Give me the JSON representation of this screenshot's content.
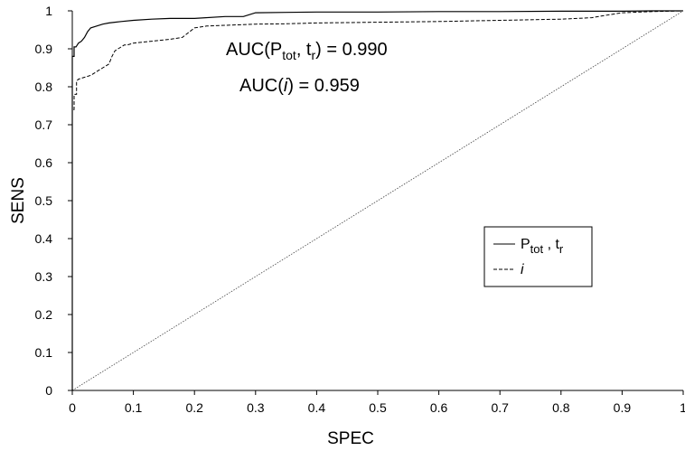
{
  "chart_data": {
    "type": "line",
    "xlabel": "SPEC",
    "ylabel": "SENS",
    "xlim": [
      0,
      1
    ],
    "ylim": [
      0,
      1
    ],
    "x_ticks": [
      "0",
      "0.1",
      "0.2",
      "0.3",
      "0.4",
      "0.5",
      "0.6",
      "0.7",
      "0.8",
      "0.9",
      "1"
    ],
    "y_ticks": [
      "0",
      "0.1",
      "0.2",
      "0.3",
      "0.4",
      "0.5",
      "0.6",
      "0.7",
      "0.8",
      "0.9",
      "1"
    ],
    "grid": false,
    "legend_position": "right",
    "annotations": [
      {
        "parts": [
          [
            "AUC(P",
            ""
          ],
          [
            "tot",
            "sub"
          ],
          [
            ", t",
            ""
          ],
          [
            "r",
            "sub"
          ],
          [
            ") = 0.990",
            ""
          ]
        ]
      },
      {
        "parts": [
          [
            "AUC(",
            ""
          ],
          [
            "i",
            "italic"
          ],
          [
            ") = 0.959",
            ""
          ]
        ]
      }
    ],
    "series": [
      {
        "name": "P tot , t r",
        "legend_parts": [
          [
            "P",
            ""
          ],
          [
            "tot",
            "sub"
          ],
          [
            " , t",
            ""
          ],
          [
            "r",
            "sub"
          ]
        ],
        "style": "solid",
        "x": [
          0,
          0,
          0.003,
          0.003,
          0.006,
          0.01,
          0.015,
          0.02,
          0.025,
          0.03,
          0.04,
          0.05,
          0.06,
          0.08,
          0.1,
          0.13,
          0.16,
          0.2,
          0.25,
          0.28,
          0.3,
          0.35,
          0.4,
          0.5,
          0.6,
          0.7,
          0.8,
          0.9,
          0.95,
          1
        ],
        "y": [
          0,
          0.88,
          0.88,
          0.905,
          0.905,
          0.915,
          0.92,
          0.93,
          0.945,
          0.955,
          0.96,
          0.965,
          0.968,
          0.972,
          0.975,
          0.978,
          0.98,
          0.98,
          0.985,
          0.985,
          0.995,
          0.996,
          0.997,
          0.997,
          0.998,
          0.998,
          0.999,
          0.999,
          1,
          1
        ]
      },
      {
        "name": "i",
        "legend_parts": [
          [
            "i",
            "italic"
          ]
        ],
        "style": "dashed",
        "x": [
          0,
          0,
          0.003,
          0.003,
          0.007,
          0.007,
          0.01,
          0.02,
          0.03,
          0.04,
          0.05,
          0.06,
          0.065,
          0.07,
          0.075,
          0.08,
          0.085,
          0.09,
          0.1,
          0.13,
          0.16,
          0.18,
          0.2,
          0.22,
          0.3,
          0.35,
          0.4,
          0.5,
          0.6,
          0.7,
          0.8,
          0.85,
          0.88,
          0.9,
          0.95,
          1
        ],
        "y": [
          0,
          0.74,
          0.74,
          0.78,
          0.78,
          0.815,
          0.82,
          0.825,
          0.83,
          0.84,
          0.85,
          0.86,
          0.88,
          0.895,
          0.9,
          0.905,
          0.91,
          0.91,
          0.915,
          0.92,
          0.925,
          0.93,
          0.955,
          0.96,
          0.965,
          0.966,
          0.968,
          0.97,
          0.972,
          0.975,
          0.978,
          0.982,
          0.99,
          0.995,
          0.998,
          1
        ]
      },
      {
        "name": "",
        "style": "dotted",
        "x": [
          0,
          1
        ],
        "y": [
          0,
          1
        ]
      }
    ]
  }
}
